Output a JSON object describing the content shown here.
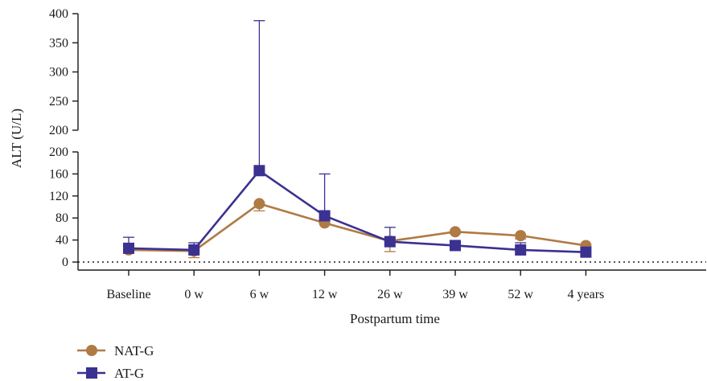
{
  "chart_data": {
    "type": "line",
    "xlabel": "Postpartum time",
    "ylabel": "ALT (U/L)",
    "categories": [
      "Baseline",
      "0 w",
      "6 w",
      "12 w",
      "26 w",
      "39 w",
      "52 w",
      "4 years"
    ],
    "y_axis_break": true,
    "y_lower": {
      "range": [
        0,
        200
      ],
      "ticks": [
        0,
        40,
        80,
        120,
        160,
        200
      ]
    },
    "y_upper": {
      "range": [
        200,
        400
      ],
      "ticks": [
        200,
        250,
        300,
        350,
        400
      ]
    },
    "zero_reference_line": "dotted",
    "legend_position": "bottom-left",
    "series": [
      {
        "name": "NAT-G",
        "color": "#b07a45",
        "marker": "circle",
        "values": [
          22,
          20,
          106,
          71,
          38,
          55,
          48,
          30
        ],
        "error_up": [
          null,
          null,
          null,
          null,
          null,
          null,
          null,
          null
        ],
        "error_down": [
          null,
          8,
          93,
          71,
          19,
          52,
          42,
          null
        ]
      },
      {
        "name": "AT-G",
        "color": "#3a3191",
        "marker": "square",
        "values": [
          25,
          22,
          166,
          84,
          37,
          30,
          22,
          18
        ],
        "error_up": [
          45,
          35,
          388,
          160,
          63,
          null,
          35,
          null
        ],
        "error_down": [
          null,
          null,
          null,
          null,
          null,
          null,
          null,
          null
        ]
      }
    ]
  }
}
